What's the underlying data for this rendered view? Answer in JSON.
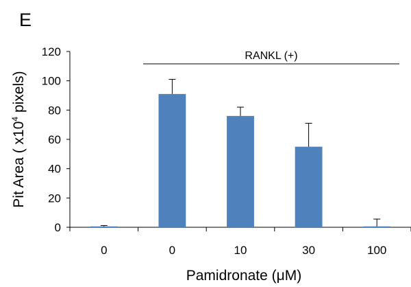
{
  "panel_label": "E",
  "chart_data": {
    "type": "bar",
    "categories": [
      "0",
      "0",
      "10",
      "30",
      "100"
    ],
    "values": [
      0.6,
      91,
      76,
      55,
      0.6
    ],
    "error_upper": [
      0.6,
      10,
      6,
      16,
      5
    ],
    "xlabel": "Pamidronate (μM)",
    "ylabel_prefix": "Pit Area ( x10",
    "ylabel_sup": "4",
    "ylabel_suffix": " pixels)",
    "ylim": [
      0,
      120
    ],
    "yticks": [
      0,
      20,
      40,
      60,
      80,
      100,
      120
    ],
    "ytick_labels": [
      "0",
      "20",
      "40",
      "60",
      "80",
      "100",
      "120"
    ],
    "grid": false,
    "bar_color": "#4f81bd",
    "annotation": "RANKL (+)"
  }
}
